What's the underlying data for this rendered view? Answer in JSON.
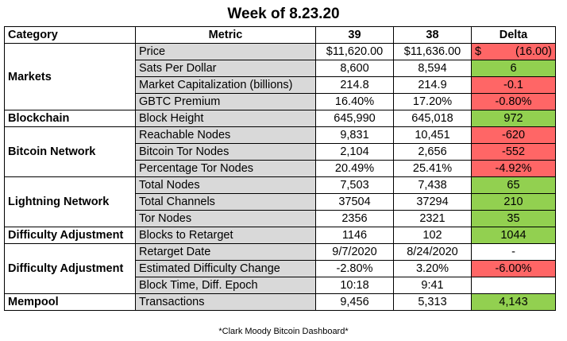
{
  "title": "Week of 8.23.20",
  "headers": {
    "category": "Category",
    "metric": "Metric",
    "col1": "39",
    "col2": "38",
    "delta": "Delta"
  },
  "groups": [
    {
      "category": "Markets",
      "rows": [
        {
          "metric": "Price",
          "v1": "$11,620.00",
          "v2": "$11,636.00",
          "delta_symbol": "$",
          "delta": "(16.00)",
          "status": "neg"
        },
        {
          "metric": "Sats Per Dollar",
          "v1": "8,600",
          "v2": "8,594",
          "delta": "6",
          "status": "pos"
        },
        {
          "metric": "Market Capitalization (billions)",
          "v1": "214.8",
          "v2": "214.9",
          "delta": "-0.1",
          "status": "neg"
        },
        {
          "metric": "GBTC Premium",
          "v1": "16.40%",
          "v2": "17.20%",
          "delta": "-0.80%",
          "status": "neg"
        }
      ]
    },
    {
      "category": "Blockchain",
      "rows": [
        {
          "metric": "Block Height",
          "v1": "645,990",
          "v2": "645,018",
          "delta": "972",
          "status": "pos"
        }
      ]
    },
    {
      "category": "Bitcoin Network",
      "rows": [
        {
          "metric": "Reachable Nodes",
          "v1": "9,831",
          "v2": "10,451",
          "delta": "-620",
          "status": "neg"
        },
        {
          "metric": "Bitcoin Tor Nodes",
          "v1": "2,104",
          "v2": "2,656",
          "delta": "-552",
          "status": "neg"
        },
        {
          "metric": "Percentage Tor Nodes",
          "v1": "20.49%",
          "v2": "25.41%",
          "delta": "-4.92%",
          "status": "neg"
        }
      ]
    },
    {
      "category": "Lightning Network",
      "rows": [
        {
          "metric": "Total Nodes",
          "v1": "7,503",
          "v2": "7,438",
          "delta": "65",
          "status": "pos"
        },
        {
          "metric": "Total Channels",
          "v1": "37504",
          "v2": "37294",
          "delta": "210",
          "status": "pos"
        },
        {
          "metric": "Tor Nodes",
          "v1": "2356",
          "v2": "2321",
          "delta": "35",
          "status": "pos"
        }
      ]
    },
    {
      "category": "Difficulty Adjustment",
      "rows": [
        {
          "metric": "Blocks to Retarget",
          "v1": "1146",
          "v2": "102",
          "delta": "1044",
          "status": "pos"
        }
      ]
    },
    {
      "category": "Difficulty Adjustment",
      "rows": [
        {
          "metric": "Retarget Date",
          "v1": "9/7/2020",
          "v2": "8/24/2020",
          "delta": "-",
          "status": "neu"
        },
        {
          "metric": "Estimated Difficulty Change",
          "v1": "-2.80%",
          "v2": "3.20%",
          "delta": "-6.00%",
          "status": "neg"
        },
        {
          "metric": "Block Time, Diff. Epoch",
          "v1": "10:18",
          "v2": "9:41",
          "delta": "",
          "status": "neu"
        }
      ]
    },
    {
      "category": "Mempool",
      "rows": [
        {
          "metric": "Transactions",
          "v1": "9,456",
          "v2": "5,313",
          "delta": "4,143",
          "status": "pos"
        }
      ]
    }
  ],
  "footnote": "*Clark Moody Bitcoin Dashboard*",
  "colors": {
    "negative": "#ff6666",
    "positive": "#92d050",
    "metric_bg": "#d9d9d9"
  }
}
